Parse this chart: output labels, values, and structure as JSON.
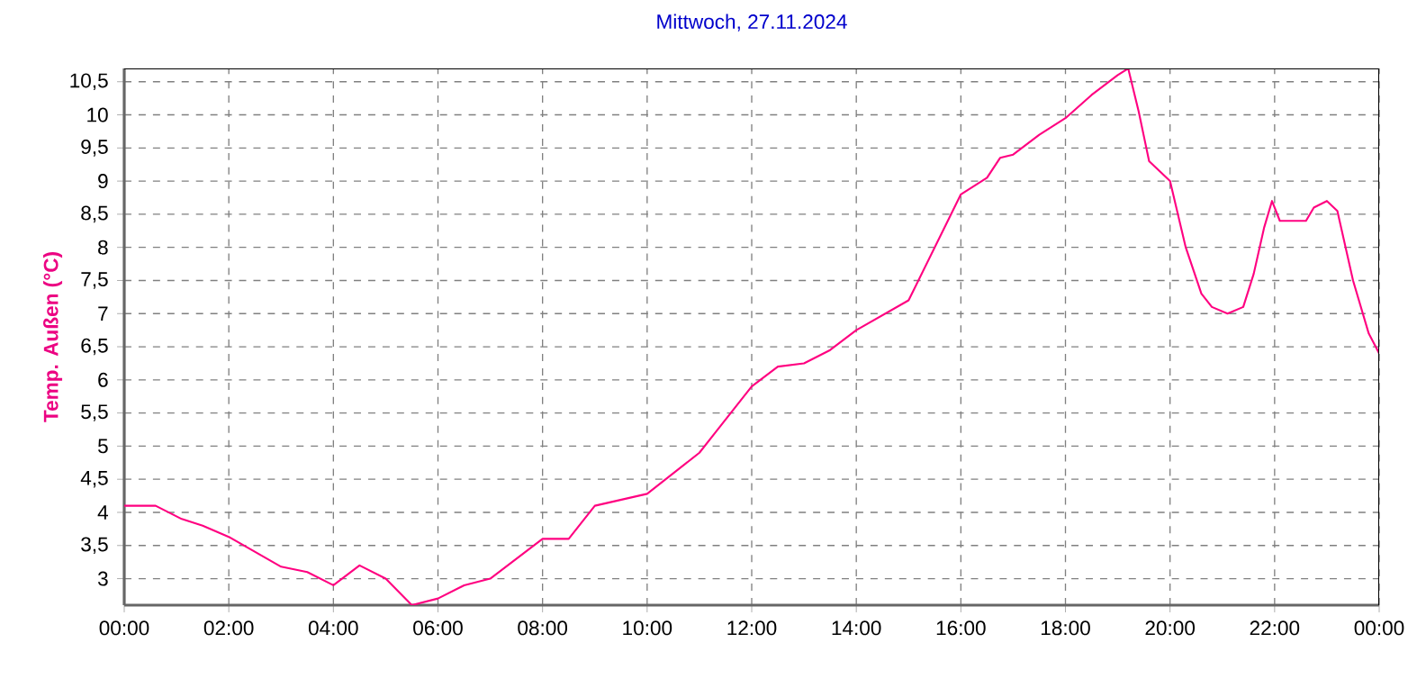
{
  "chart_data": {
    "type": "line",
    "title": "Mittwoch, 27.11.2024",
    "ylabel": "Temp. Außen  (°C)",
    "x": [
      0,
      0.6,
      1.1,
      1.5,
      2,
      3,
      3.5,
      4,
      4.5,
      5,
      5.5,
      6,
      6.5,
      7,
      8,
      8.5,
      9,
      10,
      11,
      11.3,
      12,
      12.5,
      13,
      13.5,
      14,
      15,
      16,
      16.5,
      16.75,
      17,
      17.5,
      18,
      18.5,
      19,
      19.2,
      19.4,
      19.6,
      20,
      20.3,
      20.6,
      20.8,
      21.1,
      21.4,
      21.6,
      21.8,
      21.95,
      22.1,
      22.6,
      22.75,
      23,
      23.2,
      23.5,
      23.8,
      24
    ],
    "series": [
      {
        "color": "#ff0080",
        "values": [
          4.1,
          4.1,
          3.9,
          3.8,
          3.63,
          3.18,
          3.1,
          2.9,
          3.2,
          3.0,
          2.6,
          2.7,
          2.9,
          3.0,
          3.6,
          3.6,
          4.1,
          4.28,
          4.9,
          5.2,
          5.9,
          6.2,
          6.25,
          6.45,
          6.75,
          7.2,
          8.8,
          9.05,
          9.35,
          9.4,
          9.7,
          9.95,
          10.3,
          10.6,
          10.7,
          10.05,
          9.3,
          9.0,
          8.0,
          7.3,
          7.1,
          7.0,
          7.1,
          7.6,
          8.3,
          8.7,
          8.4,
          8.4,
          8.6,
          8.7,
          8.55,
          7.5,
          6.7,
          6.4
        ]
      }
    ],
    "xlim": [
      0,
      24
    ],
    "ylim": [
      2.6,
      10.7
    ],
    "xticks": [
      {
        "value": 0,
        "label": "00:00"
      },
      {
        "value": 2,
        "label": "02:00"
      },
      {
        "value": 4,
        "label": "04:00"
      },
      {
        "value": 6,
        "label": "06:00"
      },
      {
        "value": 8,
        "label": "08:00"
      },
      {
        "value": 10,
        "label": "10:00"
      },
      {
        "value": 12,
        "label": "12:00"
      },
      {
        "value": 14,
        "label": "14:00"
      },
      {
        "value": 16,
        "label": "16:00"
      },
      {
        "value": 18,
        "label": "18:00"
      },
      {
        "value": 20,
        "label": "20:00"
      },
      {
        "value": 22,
        "label": "22:00"
      },
      {
        "value": 24,
        "label": "00:00"
      }
    ],
    "yticks": [
      3,
      {
        "value": 3.5,
        "label": "3,5"
      },
      4,
      {
        "value": 4.5,
        "label": "4,5"
      },
      5,
      {
        "value": 5.5,
        "label": "5,5"
      },
      6,
      {
        "value": 6.5,
        "label": "6,5"
      },
      7,
      {
        "value": 7.5,
        "label": "7,5"
      },
      8,
      {
        "value": 8.5,
        "label": "8,5"
      },
      9,
      {
        "value": 9.5,
        "label": "9,5"
      },
      10,
      {
        "value": 10.5,
        "label": "10,5"
      }
    ],
    "grid": true,
    "line_style": "solid",
    "marker": "none"
  }
}
